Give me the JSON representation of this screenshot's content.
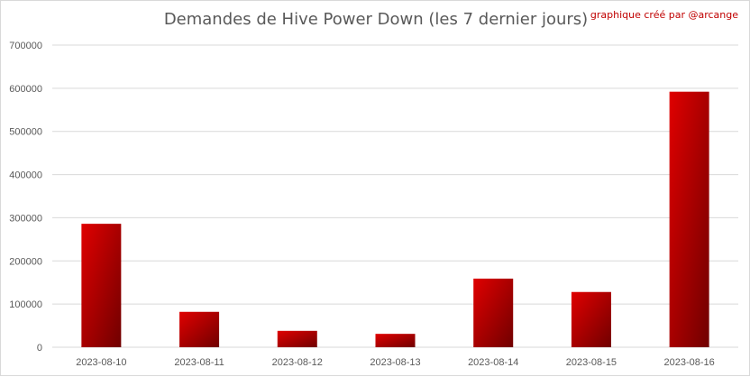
{
  "chart_data": {
    "type": "bar",
    "title": "Demandes de Hive Power Down (les 7 dernier jours)",
    "credit": "graphique créé par @arcange",
    "categories": [
      "2023-08-10",
      "2023-08-11",
      "2023-08-12",
      "2023-08-13",
      "2023-08-14",
      "2023-08-15",
      "2023-08-16"
    ],
    "values": [
      286000,
      82000,
      38000,
      31000,
      159000,
      128000,
      592000
    ],
    "ylim": [
      0,
      700000
    ],
    "yticks": [
      0,
      100000,
      200000,
      300000,
      400000,
      500000,
      600000,
      700000
    ],
    "ytick_labels": [
      "0",
      "100000",
      "200000",
      "300000",
      "400000",
      "500000",
      "600000",
      "700000"
    ],
    "grid": true,
    "xlabel": "",
    "ylabel": "",
    "bar_color_light": "#e00000",
    "bar_color_dark": "#700000",
    "gridline_color": "#d9d9d9"
  }
}
